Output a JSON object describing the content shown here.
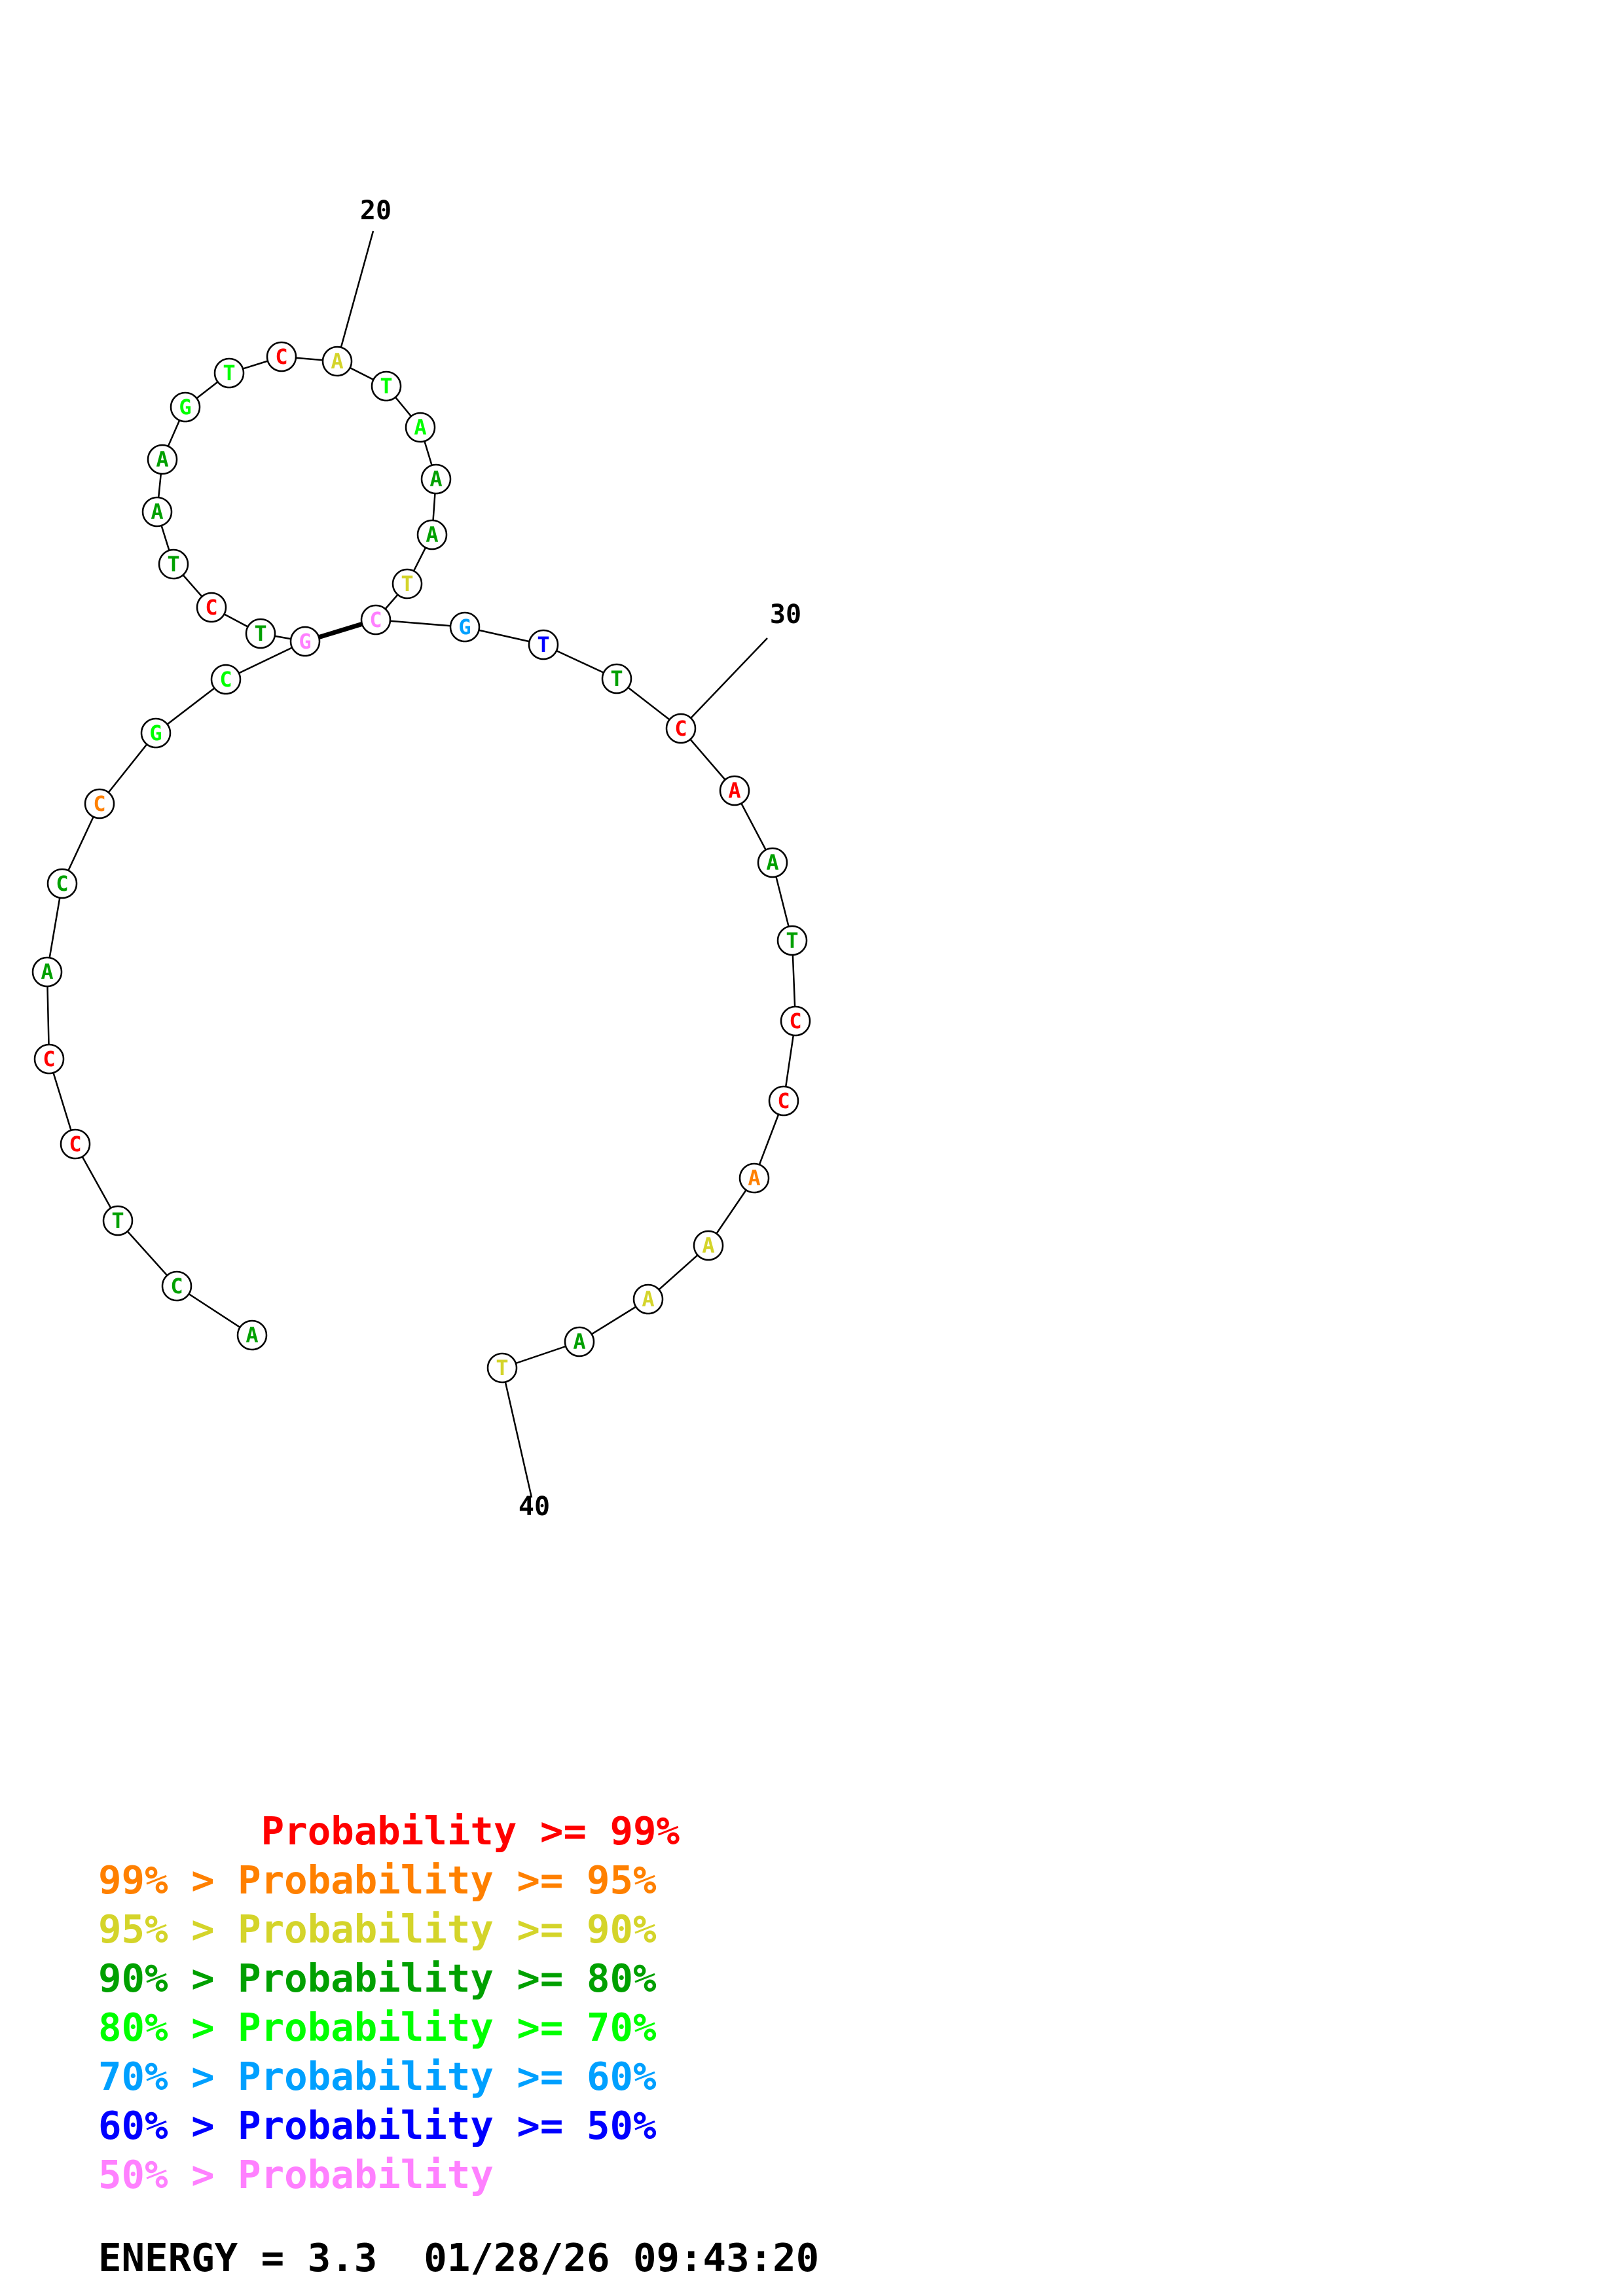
{
  "diagram": {
    "position_labels": [
      {
        "label": "20",
        "at": 20
      },
      {
        "label": "30",
        "at": 30
      },
      {
        "label": "40",
        "at": 40
      }
    ],
    "colors": {
      "p99": "#ff0000",
      "p95": "#ff8000",
      "p90": "#d4d42a",
      "p80": "#00a000",
      "p70": "#00ff00",
      "p60": "#00a0ff",
      "p50": "#0000ff",
      "plow": "#ff80ff"
    },
    "bases": [
      {
        "n": 1,
        "base": "A",
        "class": "p80"
      },
      {
        "n": 2,
        "base": "C",
        "class": "p80"
      },
      {
        "n": 3,
        "base": "T",
        "class": "p80"
      },
      {
        "n": 4,
        "base": "C",
        "class": "p99"
      },
      {
        "n": 5,
        "base": "C",
        "class": "p99"
      },
      {
        "n": 6,
        "base": "A",
        "class": "p80"
      },
      {
        "n": 7,
        "base": "C",
        "class": "p80"
      },
      {
        "n": 8,
        "base": "C",
        "class": "p95"
      },
      {
        "n": 9,
        "base": "G",
        "class": "p70"
      },
      {
        "n": 10,
        "base": "C",
        "class": "p70"
      },
      {
        "n": 11,
        "base": "G",
        "class": "plow"
      },
      {
        "n": 12,
        "base": "T",
        "class": "p80"
      },
      {
        "n": 13,
        "base": "C",
        "class": "p99"
      },
      {
        "n": 14,
        "base": "T",
        "class": "p80"
      },
      {
        "n": 15,
        "base": "A",
        "class": "p80"
      },
      {
        "n": 16,
        "base": "A",
        "class": "p80"
      },
      {
        "n": 17,
        "base": "G",
        "class": "p70"
      },
      {
        "n": 18,
        "base": "T",
        "class": "p70"
      },
      {
        "n": 19,
        "base": "C",
        "class": "p99"
      },
      {
        "n": 20,
        "base": "A",
        "class": "p90"
      },
      {
        "n": 21,
        "base": "T",
        "class": "p70"
      },
      {
        "n": 22,
        "base": "A",
        "class": "p70"
      },
      {
        "n": 23,
        "base": "A",
        "class": "p80"
      },
      {
        "n": 24,
        "base": "A",
        "class": "p80"
      },
      {
        "n": 25,
        "base": "T",
        "class": "p90"
      },
      {
        "n": 26,
        "base": "C",
        "class": "plow"
      },
      {
        "n": 27,
        "base": "G",
        "class": "p60"
      },
      {
        "n": 28,
        "base": "T",
        "class": "p50"
      },
      {
        "n": 29,
        "base": "T",
        "class": "p80"
      },
      {
        "n": 30,
        "base": "C",
        "class": "p99"
      },
      {
        "n": 31,
        "base": "A",
        "class": "p99"
      },
      {
        "n": 32,
        "base": "A",
        "class": "p80"
      },
      {
        "n": 33,
        "base": "T",
        "class": "p80"
      },
      {
        "n": 34,
        "base": "C",
        "class": "p99"
      },
      {
        "n": 35,
        "base": "C",
        "class": "p99"
      },
      {
        "n": 36,
        "base": "A",
        "class": "p95"
      },
      {
        "n": 37,
        "base": "A",
        "class": "p90"
      },
      {
        "n": 38,
        "base": "A",
        "class": "p90"
      },
      {
        "n": 39,
        "base": "A",
        "class": "p80"
      },
      {
        "n": 40,
        "base": "T",
        "class": "p90"
      }
    ],
    "pairs": [
      [
        11,
        26
      ]
    ]
  },
  "legend": [
    {
      "text": "       Probability >= 99%",
      "class": "p99"
    },
    {
      "text": "99% > Probability >= 95%",
      "class": "p95"
    },
    {
      "text": "95% > Probability >= 90%",
      "class": "p90"
    },
    {
      "text": "90% > Probability >= 80%",
      "class": "p80"
    },
    {
      "text": "80% > Probability >= 70%",
      "class": "p70"
    },
    {
      "text": "70% > Probability >= 60%",
      "class": "p60"
    },
    {
      "text": "60% > Probability >= 50%",
      "class": "p50"
    },
    {
      "text": "50% > Probability",
      "class": "plow"
    }
  ],
  "footer": {
    "energy": "ENERGY = 3.3  01/28/26 09:43:20"
  }
}
